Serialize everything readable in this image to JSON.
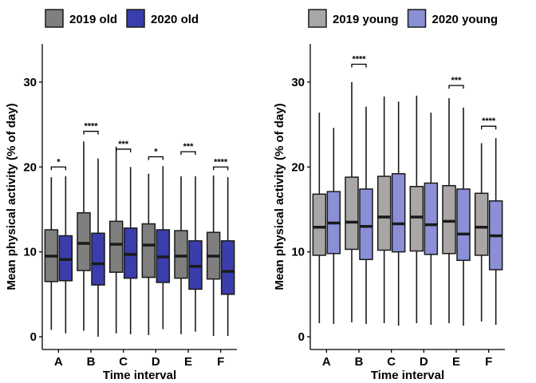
{
  "chart_data": [
    {
      "type": "boxplot",
      "xlabel": "Time interval",
      "ylabel": "Mean physical activity (% of day)",
      "ylim": [
        -1.5,
        34.5
      ],
      "yticks": [
        0,
        10,
        20,
        30
      ],
      "categories": [
        "A",
        "B",
        "C",
        "D",
        "E",
        "F"
      ],
      "legend_position": "top",
      "series": [
        {
          "name": "2019 old",
          "color": "#7f7f7f",
          "boxes": [
            {
              "min": 0.8,
              "q1": 6.5,
              "median": 9.5,
              "q3": 12.6,
              "max": 18.8
            },
            {
              "min": 0.7,
              "q1": 7.8,
              "median": 11.0,
              "q3": 14.6,
              "max": 23.0
            },
            {
              "min": 0.4,
              "q1": 7.6,
              "median": 10.9,
              "q3": 13.6,
              "max": 22.4
            },
            {
              "min": 0.2,
              "q1": 7.0,
              "median": 10.8,
              "q3": 13.3,
              "max": 19.2
            },
            {
              "min": 0.3,
              "q1": 6.9,
              "median": 9.5,
              "q3": 12.5,
              "max": 18.9
            },
            {
              "min": 0.1,
              "q1": 6.8,
              "median": 9.5,
              "q3": 12.3,
              "max": 19.0
            }
          ]
        },
        {
          "name": "2020 old",
          "color": "#3a3dab",
          "boxes": [
            {
              "min": 0.4,
              "q1": 6.6,
              "median": 9.1,
              "q3": 11.9,
              "max": 18.9
            },
            {
              "min": 0.0,
              "q1": 6.1,
              "median": 8.6,
              "q3": 12.2,
              "max": 21.0
            },
            {
              "min": 0.3,
              "q1": 6.9,
              "median": 9.7,
              "q3": 12.8,
              "max": 20.0
            },
            {
              "min": 0.9,
              "q1": 6.4,
              "median": 9.4,
              "q3": 12.6,
              "max": 20.1
            },
            {
              "min": 0.6,
              "q1": 5.6,
              "median": 8.3,
              "q3": 11.3,
              "max": 18.9
            },
            {
              "min": 0.1,
              "q1": 5.0,
              "median": 7.7,
              "q3": 11.3,
              "max": 18.8
            }
          ]
        }
      ],
      "significance": [
        "*",
        "****",
        "***",
        "*",
        "***",
        "****"
      ],
      "significance_levels": [
        20.0,
        24.2,
        22.1,
        21.2,
        21.8,
        20.0
      ]
    },
    {
      "type": "boxplot",
      "xlabel": "Time interval",
      "ylabel": "Mean physical activity (% of day)",
      "ylim": [
        -1.5,
        34.5
      ],
      "yticks": [
        0,
        10,
        20,
        30
      ],
      "categories": [
        "A",
        "B",
        "C",
        "D",
        "E",
        "F"
      ],
      "legend_position": "top",
      "series": [
        {
          "name": "2019 young",
          "color": "#a9a6a6",
          "boxes": [
            {
              "min": 1.6,
              "q1": 9.6,
              "median": 12.9,
              "q3": 16.8,
              "max": 26.4
            },
            {
              "min": 1.7,
              "q1": 10.3,
              "median": 13.5,
              "q3": 18.8,
              "max": 30.0
            },
            {
              "min": 1.6,
              "q1": 10.2,
              "median": 14.1,
              "q3": 18.9,
              "max": 28.3
            },
            {
              "min": 1.6,
              "q1": 10.1,
              "median": 14.1,
              "q3": 17.7,
              "max": 28.4
            },
            {
              "min": 1.6,
              "q1": 9.8,
              "median": 13.6,
              "q3": 17.8,
              "max": 28.1
            },
            {
              "min": 1.8,
              "q1": 9.6,
              "median": 12.9,
              "q3": 16.9,
              "max": 22.8
            }
          ]
        },
        {
          "name": "2020 young",
          "color": "#8a8fd6",
          "boxes": [
            {
              "min": 1.5,
              "q1": 9.8,
              "median": 13.4,
              "q3": 17.1,
              "max": 24.6
            },
            {
              "min": 1.5,
              "q1": 9.1,
              "median": 13.0,
              "q3": 17.4,
              "max": 27.1
            },
            {
              "min": 1.3,
              "q1": 10.0,
              "median": 13.3,
              "q3": 19.2,
              "max": 27.7
            },
            {
              "min": 1.4,
              "q1": 9.7,
              "median": 13.2,
              "q3": 18.1,
              "max": 26.4
            },
            {
              "min": 1.3,
              "q1": 9.0,
              "median": 12.1,
              "q3": 17.4,
              "max": 27.0
            },
            {
              "min": 1.4,
              "q1": 7.9,
              "median": 11.9,
              "q3": 16.0,
              "max": 23.4
            }
          ]
        }
      ],
      "significance": [
        "",
        "****",
        "",
        "",
        "***",
        "****"
      ],
      "significance_levels": [
        0,
        32.1,
        0,
        0,
        29.6,
        24.8
      ]
    }
  ]
}
